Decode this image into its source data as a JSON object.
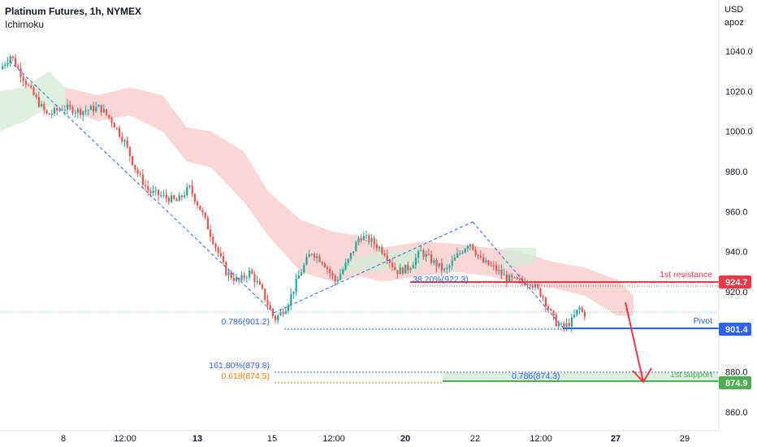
{
  "header": {
    "title": "Platinum Futures, 1h, NYMEX",
    "indicator": "Ichimoku"
  },
  "currency": {
    "unit": "USD",
    "sub": "apoz"
  },
  "colors": {
    "up": "#26a69a",
    "down": "#ef5350",
    "resistance": "#f23645",
    "pivot": "#2962ff",
    "support": "#4caf50",
    "fib_blue": "#2962ff",
    "fib_orange": "#f57c00",
    "cloud": "#f8c9c7",
    "cloud_green": "#d3ecd4"
  },
  "chart_data": {
    "type": "candlestick",
    "title": "Platinum Futures, 1h, NYMEX",
    "ylim": [
      850,
      1045
    ],
    "yticks": [
      860.0,
      880.0,
      900.0,
      920.0,
      940.0,
      960.0,
      980.0,
      1000.0,
      1020.0,
      1040.0
    ],
    "x_tick_labels": [
      "8",
      "12:00",
      "13",
      "15",
      "12:00",
      "20",
      "22",
      "12:00",
      "27",
      "29"
    ],
    "price_path": [
      [
        0,
        1030
      ],
      [
        15,
        1038
      ],
      [
        40,
        1020
      ],
      [
        60,
        1008
      ],
      [
        80,
        1012
      ],
      [
        100,
        1010
      ],
      [
        125,
        1012
      ],
      [
        140,
        1005
      ],
      [
        155,
        995
      ],
      [
        170,
        980
      ],
      [
        185,
        970
      ],
      [
        200,
        968
      ],
      [
        220,
        965
      ],
      [
        235,
        972
      ],
      [
        250,
        960
      ],
      [
        265,
        945
      ],
      [
        280,
        930
      ],
      [
        295,
        925
      ],
      [
        310,
        930
      ],
      [
        325,
        920
      ],
      [
        340,
        906
      ],
      [
        355,
        913
      ],
      [
        370,
        928
      ],
      [
        385,
        940
      ],
      [
        400,
        935
      ],
      [
        415,
        925
      ],
      [
        430,
        935
      ],
      [
        445,
        948
      ],
      [
        460,
        945
      ],
      [
        475,
        940
      ],
      [
        490,
        930
      ],
      [
        505,
        932
      ],
      [
        520,
        940
      ],
      [
        535,
        935
      ],
      [
        550,
        930
      ],
      [
        565,
        938
      ],
      [
        580,
        945
      ],
      [
        595,
        935
      ],
      [
        610,
        932
      ],
      [
        625,
        927
      ],
      [
        640,
        925
      ],
      [
        655,
        925
      ],
      [
        670,
        918
      ],
      [
        685,
        905
      ],
      [
        695,
        902
      ],
      [
        705,
        905
      ],
      [
        715,
        912
      ],
      [
        720,
        909
      ]
    ],
    "annotations": {
      "resistance": {
        "label": "1st resistance",
        "value": 924.7
      },
      "pivot": {
        "label": "Pivot",
        "value": 901.4
      },
      "support": {
        "label": "1st support",
        "value": 874.9
      },
      "fib_texts": [
        "38.20%(922.3)",
        "0.786(901.2)",
        "161.80%(879.8)",
        "0.618(874.5)",
        "0.786(874.3)"
      ]
    },
    "price_tags": [
      "924.7",
      "901.4",
      "874.9"
    ]
  }
}
